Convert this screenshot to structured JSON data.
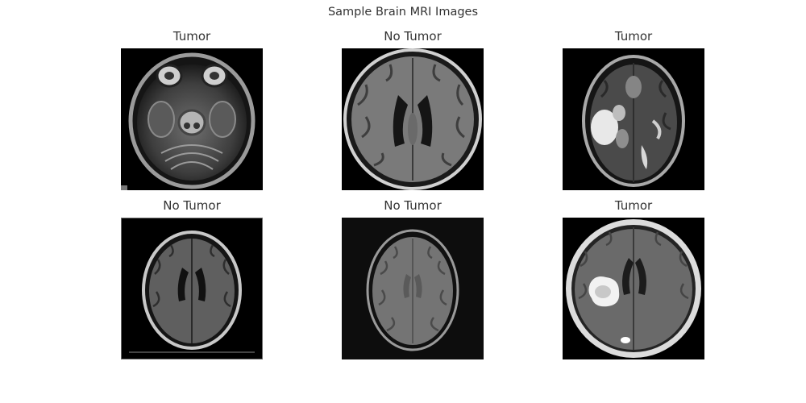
{
  "figure": {
    "title": "Sample Brain MRI Images"
  },
  "panels": [
    {
      "label": "Tumor"
    },
    {
      "label": "No Tumor"
    },
    {
      "label": "Tumor"
    },
    {
      "label": "No Tumor"
    },
    {
      "label": "No Tumor"
    },
    {
      "label": "Tumor"
    }
  ]
}
